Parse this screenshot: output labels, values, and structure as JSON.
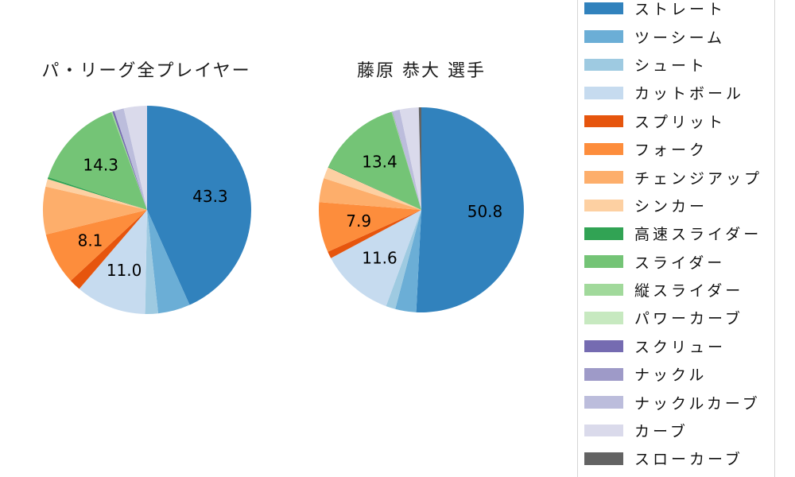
{
  "legend": {
    "entries": [
      "ストレート",
      "ツーシーム",
      "シュート",
      "カットボール",
      "スプリット",
      "フォーク",
      "チェンジアップ",
      "シンカー",
      "高速スライダー",
      "スライダー",
      "縦スライダー",
      "パワーカーブ",
      "スクリュー",
      "ナックル",
      "ナックルカーブ",
      "カーブ",
      "スローカーブ"
    ],
    "colors": [
      "#3182bd",
      "#6baed6",
      "#9ecae1",
      "#c6dbef",
      "#e6550d",
      "#fd8d3c",
      "#fdae6b",
      "#fdd0a2",
      "#31a354",
      "#74c476",
      "#a1d99b",
      "#c7e9c0",
      "#756bb1",
      "#9e9ac8",
      "#bcbddc",
      "#dadaeb",
      "#636363"
    ],
    "position": "right",
    "border_color": "#d5d5d5"
  },
  "chart_data": [
    {
      "type": "pie",
      "title": "パ・リーグ全プレイヤー",
      "start_angle": "top",
      "direction": "clockwise",
      "categories": [
        "ストレート",
        "ツーシーム",
        "シュート",
        "カットボール",
        "スプリット",
        "フォーク",
        "チェンジアップ",
        "シンカー",
        "高速スライダー",
        "スライダー",
        "縦スライダー",
        "パワーカーブ",
        "スクリュー",
        "ナックル",
        "ナックルカーブ",
        "カーブ",
        "スローカーブ"
      ],
      "values": [
        43.3,
        5.0,
        2.0,
        11.0,
        1.8,
        8.1,
        7.4,
        1.2,
        0.3,
        14.3,
        0.2,
        0,
        0.3,
        0,
        1.5,
        3.6,
        0
      ],
      "display_labels": [
        "43.3",
        null,
        null,
        "11.0",
        null,
        "8.1",
        null,
        null,
        null,
        "14.3",
        null,
        null,
        null,
        null,
        null,
        null,
        null
      ]
    },
    {
      "type": "pie",
      "title": "藤原 恭大 選手",
      "start_angle": "top",
      "direction": "clockwise",
      "categories": [
        "ストレート",
        "ツーシーム",
        "シュート",
        "カットボール",
        "スプリット",
        "フォーク",
        "チェンジアップ",
        "シンカー",
        "高速スライダー",
        "スライダー",
        "縦スライダー",
        "パワーカーブ",
        "スクリュー",
        "ナックル",
        "ナックルカーブ",
        "カーブ",
        "スローカーブ"
      ],
      "values": [
        50.8,
        3.3,
        1.5,
        11.6,
        1.1,
        7.9,
        3.8,
        1.8,
        0.1,
        13.4,
        0.1,
        0,
        0,
        0.1,
        1.1,
        3.0,
        0.4
      ],
      "display_labels": [
        "50.8",
        null,
        null,
        "11.6",
        null,
        "7.9",
        null,
        null,
        null,
        "13.4",
        null,
        null,
        null,
        null,
        null,
        null,
        null
      ]
    }
  ]
}
